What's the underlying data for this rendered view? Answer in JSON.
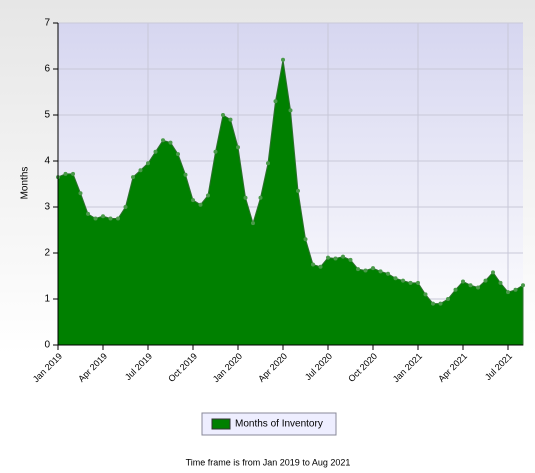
{
  "chart_data": {
    "type": "area",
    "y_label": "Months",
    "footer": "Time frame is from Jan 2019 to Aug 2021",
    "categories": [
      "Jan 2019",
      null,
      null,
      null,
      null,
      null,
      "Apr 2019",
      null,
      null,
      null,
      null,
      null,
      "Jul 2019",
      null,
      null,
      null,
      null,
      null,
      "Oct 2019",
      null,
      null,
      null,
      null,
      null,
      "Jan 2020",
      null,
      null,
      null,
      null,
      null,
      "Apr 2020",
      null,
      null,
      null,
      null,
      null,
      "Jul 2020",
      null,
      null,
      null,
      null,
      null,
      "Oct 2020",
      null,
      null,
      null,
      null,
      null,
      "Jan 2021",
      null,
      null,
      null,
      null,
      null,
      "Apr 2021",
      null,
      null,
      null,
      null,
      null,
      "Jul 2021",
      null,
      null
    ],
    "series": [
      {
        "name": "Months of Inventory",
        "color": "#008000",
        "values": [
          3.65,
          3.72,
          3.72,
          3.3,
          2.85,
          2.75,
          2.8,
          2.75,
          2.75,
          3.0,
          3.65,
          3.8,
          3.95,
          4.2,
          4.45,
          4.4,
          4.15,
          3.7,
          3.15,
          3.05,
          3.25,
          4.2,
          5.0,
          4.9,
          4.3,
          3.2,
          2.65,
          3.2,
          3.95,
          5.3,
          6.2,
          5.1,
          3.35,
          2.3,
          1.75,
          1.7,
          1.9,
          1.88,
          1.92,
          1.85,
          1.65,
          1.62,
          1.67,
          1.6,
          1.55,
          1.45,
          1.4,
          1.35,
          1.35,
          1.1,
          0.9,
          0.9,
          1.0,
          1.2,
          1.38,
          1.3,
          1.25,
          1.4,
          1.58,
          1.35,
          1.15,
          1.2,
          1.3
        ]
      }
    ],
    "ylim": [
      0,
      7
    ],
    "yticks": [
      0,
      1,
      2,
      3,
      4,
      5,
      6,
      7
    ],
    "grid": true
  }
}
